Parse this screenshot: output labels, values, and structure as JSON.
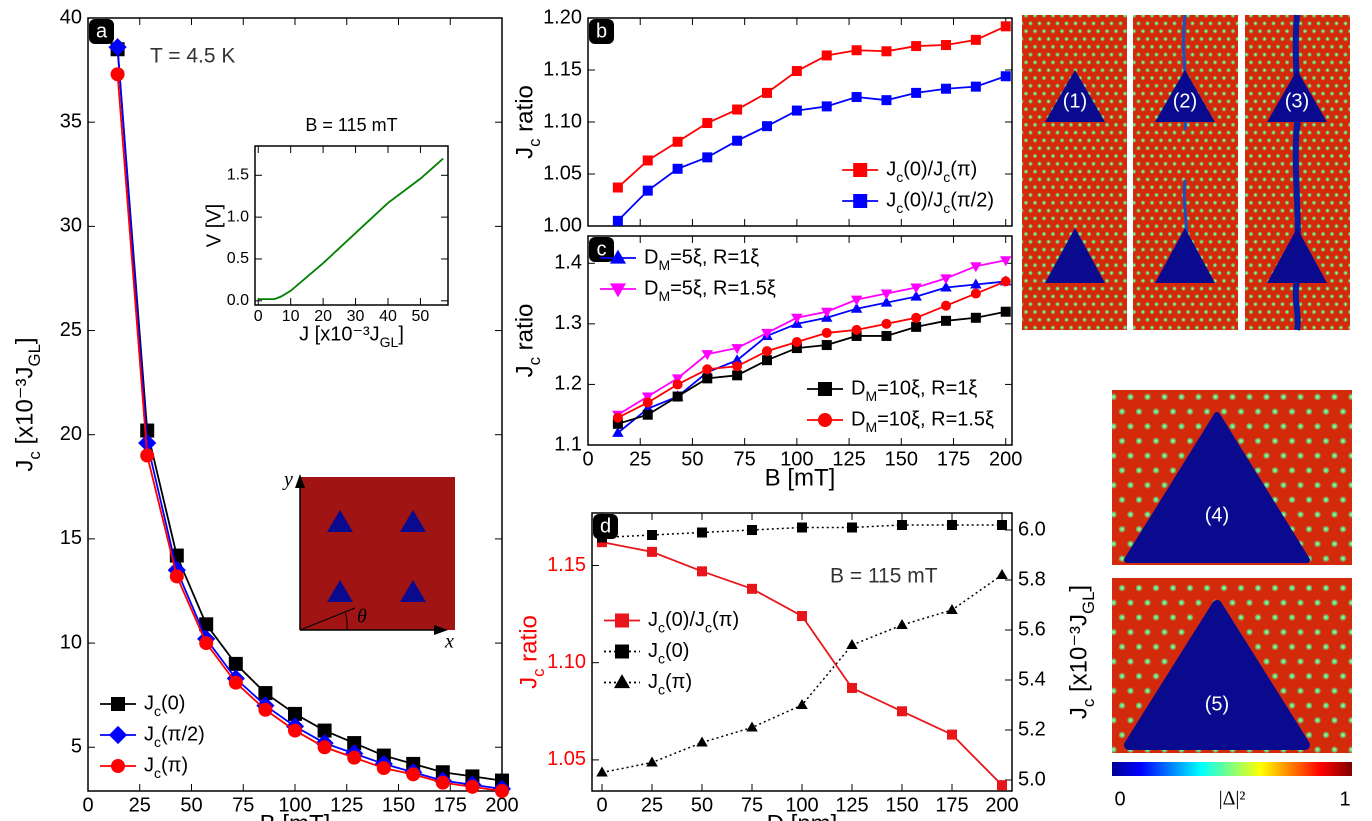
{
  "chart_data": [
    {
      "type": "line",
      "panel": "a",
      "xlabel": "B [mT]",
      "ylabel": "Jc [x10⁻³JGL]",
      "xlim": [
        0,
        200
      ],
      "ylim": [
        2.9,
        40
      ],
      "xticks": [
        0,
        25,
        50,
        75,
        100,
        125,
        150,
        175,
        200
      ],
      "yticks": [
        5,
        10,
        15,
        20,
        25,
        30,
        35,
        40
      ],
      "x": [
        14.3,
        28.6,
        42.9,
        57.1,
        71.4,
        85.7,
        100,
        114.3,
        128.6,
        142.9,
        157.1,
        171.4,
        185.7,
        200
      ],
      "series": [
        {
          "name": "Jc(0)",
          "color": "#000000",
          "marker": "square",
          "values": [
            38.5,
            20.2,
            14.2,
            10.9,
            9.0,
            7.6,
            6.6,
            5.8,
            5.2,
            4.6,
            4.2,
            3.8,
            3.6,
            3.4
          ]
        },
        {
          "name": "Jc(π/2)",
          "color": "#0000ff",
          "marker": "diamond",
          "values": [
            38.6,
            19.6,
            13.5,
            10.2,
            8.3,
            7.0,
            6.0,
            5.2,
            4.7,
            4.2,
            3.8,
            3.4,
            3.2,
            3.0
          ]
        },
        {
          "name": "Jc(π)",
          "color": "#ff0000",
          "marker": "circle",
          "values": [
            37.3,
            19.0,
            13.2,
            10.0,
            8.1,
            6.8,
            5.8,
            5.0,
            4.5,
            4.0,
            3.7,
            3.3,
            3.1,
            2.9
          ]
        }
      ],
      "legend": "lower left",
      "annotations": [
        "T = 4.5 K"
      ]
    },
    {
      "type": "line",
      "title": "B = 115 mT",
      "xlabel": "J [x10⁻³JGL]",
      "ylabel": "V [V]",
      "xlim": [
        -1,
        58.5
      ],
      "ylim": [
        -0.05,
        1.85
      ],
      "xticks": [
        0,
        10,
        20,
        30,
        40,
        50
      ],
      "yticks": [
        {
          "value": 0,
          "label": "0.0"
        },
        0.5,
        {
          "value": 1,
          "label": "1.0"
        },
        1.5
      ],
      "series": [
        {
          "color": "#008000",
          "x": [
            0,
            5,
            7,
            10,
            20,
            30,
            40,
            50,
            57
          ],
          "values": [
            0.02,
            0.02,
            0.05,
            0.12,
            0.45,
            0.81,
            1.17,
            1.46,
            1.7
          ]
        }
      ]
    },
    {
      "type": "line",
      "panel": "b",
      "ylabel": "Jc ratio",
      "show_xtick_labels": false,
      "xlim": [
        0,
        203
      ],
      "ylim": [
        1.0,
        1.2
      ],
      "xticks": [
        0,
        25,
        50,
        75,
        100,
        125,
        150,
        175,
        200
      ],
      "yticks": [
        {
          "value": 1,
          "label": "1.00"
        },
        1.05,
        {
          "value": 1.1,
          "label": "1.10"
        },
        1.15,
        {
          "value": 1.2,
          "label": "1.20"
        }
      ],
      "x": [
        14.3,
        28.6,
        42.9,
        57.1,
        71.4,
        85.7,
        100,
        114.3,
        128.6,
        142.9,
        157.1,
        171.4,
        185.7,
        200
      ],
      "series": [
        {
          "name": "Jc(0)/Jc(π)",
          "color": "#ff0000",
          "marker": "square",
          "values": [
            1.037,
            1.063,
            1.081,
            1.099,
            1.112,
            1.128,
            1.149,
            1.164,
            1.169,
            1.168,
            1.173,
            1.174,
            1.179,
            1.192
          ]
        },
        {
          "name": "Jc(0)/Jc(π/2)",
          "color": "#0000ff",
          "marker": "square",
          "values": [
            1.005,
            1.034,
            1.055,
            1.066,
            1.082,
            1.096,
            1.111,
            1.115,
            1.124,
            1.121,
            1.128,
            1.132,
            1.134,
            1.144
          ]
        }
      ],
      "legend": "lower right"
    },
    {
      "type": "line",
      "panel": "c",
      "xlabel": "B [mT]",
      "ylabel": "Jc ratio",
      "xlim": [
        0,
        203
      ],
      "ylim": [
        1.1,
        1.445
      ],
      "xticks": [
        0,
        25,
        50,
        75,
        100,
        125,
        150,
        175,
        200
      ],
      "yticks": [
        1.1,
        1.2,
        1.3,
        1.4
      ],
      "x": [
        14.3,
        28.6,
        42.9,
        57.1,
        71.4,
        85.7,
        100,
        114.3,
        128.6,
        142.9,
        157.1,
        171.4,
        185.7,
        200
      ],
      "series": [
        {
          "name": "DM=5ξ, R=1ξ",
          "color": "#0000ff",
          "marker": "triangle",
          "legend_loc": "upper left",
          "values": [
            1.12,
            1.16,
            1.18,
            1.22,
            1.24,
            1.28,
            1.3,
            1.31,
            1.325,
            1.335,
            1.345,
            1.36,
            1.365,
            1.37
          ]
        },
        {
          "name": "DM=5ξ, R=1.5ξ",
          "color": "#ff00ff",
          "marker": "triangle-down",
          "legend_loc": "upper left",
          "values": [
            1.15,
            1.18,
            1.21,
            1.25,
            1.26,
            1.285,
            1.31,
            1.32,
            1.34,
            1.35,
            1.36,
            1.375,
            1.395,
            1.405
          ]
        },
        {
          "name": "DM=10ξ, R=1ξ",
          "color": "#000000",
          "marker": "square",
          "legend_loc": "lower right",
          "values": [
            1.135,
            1.15,
            1.18,
            1.21,
            1.215,
            1.24,
            1.26,
            1.265,
            1.28,
            1.28,
            1.295,
            1.305,
            1.31,
            1.32
          ]
        },
        {
          "name": "DM=10ξ, R=1.5ξ",
          "color": "#ff0000",
          "marker": "circle",
          "legend_loc": "lower right",
          "values": [
            1.145,
            1.17,
            1.2,
            1.225,
            1.23,
            1.255,
            1.27,
            1.285,
            1.29,
            1.3,
            1.31,
            1.33,
            1.35,
            1.37
          ]
        }
      ]
    },
    {
      "type": "line",
      "panel": "d",
      "xlabel": "D [nm]",
      "ylabel": "Jc ratio",
      "ylabel_color": "#ff0000",
      "y2label": "Jc [x10⁻³JGL]",
      "xlim": [
        -5,
        205
      ],
      "ylim": [
        1.034,
        1.177
      ],
      "y2lim": [
        4.956,
        6.068
      ],
      "xticks": [
        0,
        25,
        50,
        75,
        100,
        125,
        150,
        175,
        200
      ],
      "yticks": [
        1.05,
        {
          "value": 1.1,
          "label": "1.10"
        },
        1.15
      ],
      "y2ticks": [
        {
          "value": 5,
          "label": "5.0"
        },
        5.2,
        5.4,
        5.6,
        5.8,
        {
          "value": 6,
          "label": "6.0"
        }
      ],
      "x": [
        0,
        25,
        50,
        75,
        100,
        125,
        150,
        175,
        200
      ],
      "series": [
        {
          "name": "Jc(0)/Jc(π)",
          "color": "#e8151b",
          "marker": "square",
          "values": [
            1.162,
            1.157,
            1.147,
            1.138,
            1.124,
            1.087,
            1.075,
            1.063,
            1.037
          ]
        },
        {
          "name": "Jc(0)",
          "color": "#000000",
          "marker": "square",
          "line": "dotted",
          "axis": "y2",
          "values": [
            5.97,
            5.98,
            5.99,
            6.0,
            6.01,
            6.01,
            6.02,
            6.02,
            6.02
          ]
        },
        {
          "name": "Jc(π)",
          "color": "#000000",
          "marker": "triangle",
          "line": "dotted",
          "axis": "y2",
          "values": [
            5.03,
            5.07,
            5.15,
            5.21,
            5.3,
            5.54,
            5.62,
            5.68,
            5.82
          ]
        }
      ],
      "legend": "center left",
      "annotations": [
        "B = 115 mT"
      ]
    }
  ],
  "schematic": {
    "x_label": "x",
    "y_label": "y",
    "angle_label": "θ"
  },
  "simulation_panels": {
    "labels": [
      "(1)",
      "(2)",
      "(3)",
      "(4)",
      "(5)"
    ],
    "colorbar": {
      "min_label": "0",
      "label": "|Δ|²",
      "max_label": "1"
    }
  }
}
